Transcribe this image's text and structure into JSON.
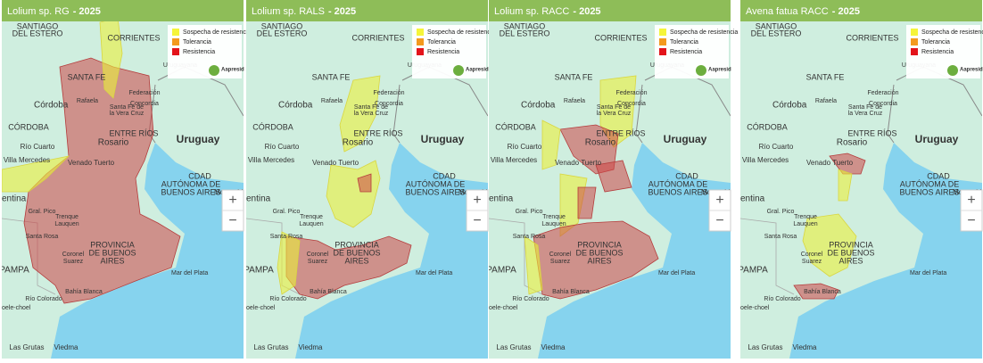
{
  "panels": [
    {
      "title": "Lolium sp. RG",
      "year": "- 2025"
    },
    {
      "title": "Lolium sp. RALS",
      "year": "- 2025"
    },
    {
      "title": "Lolium sp. RACC",
      "year": "- 2025"
    },
    {
      "title": "Avena fatua RACC",
      "year": "- 2025"
    }
  ],
  "legend": [
    "Sospecha de resistencia",
    "Tolerancia",
    "Resistencia"
  ],
  "logo": "Aapresid",
  "zoom": [
    "+",
    "−"
  ],
  "places": [
    "SANTIAGO",
    "DEL ESTERO",
    "CORRIENTES",
    "SANTA FE",
    "Córdoba",
    "CÓRDOBA",
    "ENTRE RÍOS",
    "Rosario",
    "Uruguay",
    "Río Cuarto",
    "Villa Mercedes",
    "Venado Tuerto",
    "CDAD",
    "AUTÓNOMA DE",
    "BUENOS AIRES",
    "Montevideo",
    "entina",
    "Gral. Pico",
    "Trenque",
    "Lauquen",
    "Santa Rosa",
    "PROVINCIA",
    "DE BUENOS",
    "AIRES",
    "Coronel",
    "Suarez",
    "PAMPA",
    "Mar del Plata",
    "Bahía Blanca",
    "Río Colorado",
    "oele-choel",
    "Las Grutas",
    "Viedma",
    "Federación",
    "Concordia",
    "Rafaela",
    "Santa Fe de",
    "la Vera Cruz",
    "Uruguayana"
  ]
}
